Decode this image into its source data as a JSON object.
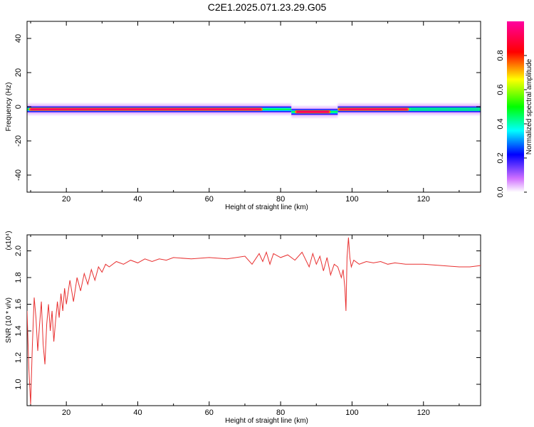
{
  "title": "C2E1.2025.071.23.29.G05",
  "chart_data": [
    {
      "type": "heatmap",
      "title": "C2E1.2025.071.23.29.G05",
      "xlabel": "Height of straight line (km)",
      "ylabel": "Frequency (Hz)",
      "xlim": [
        9,
        136
      ],
      "ylim": [
        -50,
        50
      ],
      "xticks": [
        20,
        40,
        60,
        80,
        100,
        120
      ],
      "yticks": [
        -40,
        -20,
        0,
        20,
        40
      ],
      "xtick_labels": [
        "20",
        "40",
        "60",
        "80",
        "100",
        "120"
      ],
      "ytick_labels": [
        "-40",
        "-20",
        "0",
        "20",
        "40"
      ],
      "colorbar": {
        "label": "Normalized spectral amplitude",
        "range": [
          0,
          1
        ],
        "ticks": [
          0.0,
          0.2,
          0.4,
          0.6,
          0.8
        ],
        "tick_labels": [
          "0.0",
          "0.2",
          "0.4",
          "0.6",
          "0.8"
        ],
        "colors": [
          "#ffffff",
          "#d070ff",
          "#0000ff",
          "#00ffff",
          "#00ff00",
          "#ffff00",
          "#ff0000",
          "#ff00a0"
        ]
      },
      "band": [
        {
          "x_start": 9,
          "x_end": 83,
          "center_freq": -1.5
        },
        {
          "x_start": 83,
          "x_end": 96,
          "center_freq": -3
        },
        {
          "x_start": 96,
          "x_end": 136,
          "center_freq": -1.5
        }
      ],
      "peak_segments": [
        {
          "x_start": 9.5,
          "x_end": 75,
          "amplitude": 0.95
        },
        {
          "x_start": 84,
          "x_end": 94,
          "amplitude": 0.95
        },
        {
          "x_start": 96,
          "x_end": 116,
          "amplitude": 0.9
        },
        {
          "x_start": 116,
          "x_end": 136,
          "amplitude": 0.5
        }
      ]
    },
    {
      "type": "line",
      "xlabel": "Height of straight line (km)",
      "ylabel": "SNR (10 * v/v)",
      "yscale_label": "(x10⁴)",
      "xlim": [
        9,
        136
      ],
      "ylim": [
        0.84,
        2.12
      ],
      "xticks": [
        20,
        40,
        60,
        80,
        100,
        120
      ],
      "yticks": [
        1.0,
        1.2,
        1.4,
        1.6,
        1.8,
        2.0
      ],
      "xtick_labels": [
        "20",
        "40",
        "60",
        "80",
        "100",
        "120"
      ],
      "ytick_labels": [
        "1.0",
        "1.2",
        "1.4",
        "1.6",
        "1.8",
        "2.0"
      ],
      "color": "#e83030",
      "x": [
        9.0,
        9.5,
        10.0,
        10.5,
        11.0,
        11.5,
        12.0,
        12.5,
        13.0,
        13.5,
        14.0,
        14.5,
        15.0,
        15.5,
        16.0,
        16.5,
        17.0,
        17.5,
        18.0,
        18.5,
        19.0,
        19.5,
        20.0,
        21.0,
        22.0,
        23.0,
        24.0,
        25.0,
        26.0,
        27.0,
        28.0,
        29.0,
        30.0,
        31.0,
        32.0,
        34.0,
        36.0,
        38.0,
        40.0,
        42.0,
        44.0,
        46.0,
        48.0,
        50.0,
        55.0,
        60.0,
        65.0,
        70.0,
        72.0,
        74.0,
        75.0,
        76.0,
        77.0,
        78.0,
        80.0,
        82.0,
        84.0,
        86.0,
        88.0,
        89.0,
        90.0,
        91.0,
        92.0,
        93.0,
        94.0,
        95.0,
        96.0,
        97.0,
        97.5,
        98.0,
        98.3,
        98.6,
        99.0,
        99.4,
        99.8,
        100.5,
        102.0,
        104.0,
        106.0,
        108.0,
        110.0,
        112.0,
        115.0,
        120.0,
        125.0,
        130.0,
        133.0,
        136.0
      ],
      "y": [
        1.55,
        1.12,
        0.85,
        1.3,
        1.65,
        1.5,
        1.25,
        1.45,
        1.62,
        1.3,
        1.15,
        1.45,
        1.6,
        1.4,
        1.55,
        1.32,
        1.48,
        1.62,
        1.5,
        1.68,
        1.55,
        1.72,
        1.6,
        1.78,
        1.62,
        1.8,
        1.7,
        1.83,
        1.75,
        1.86,
        1.78,
        1.88,
        1.84,
        1.9,
        1.88,
        1.92,
        1.9,
        1.93,
        1.91,
        1.94,
        1.92,
        1.94,
        1.93,
        1.95,
        1.94,
        1.95,
        1.94,
        1.96,
        1.9,
        1.98,
        1.92,
        1.99,
        1.9,
        1.98,
        1.95,
        1.97,
        1.93,
        1.99,
        1.88,
        1.98,
        1.9,
        1.96,
        1.85,
        1.95,
        1.82,
        1.9,
        1.88,
        1.8,
        1.86,
        1.72,
        1.55,
        1.95,
        2.1,
        1.95,
        1.88,
        1.93,
        1.9,
        1.92,
        1.91,
        1.92,
        1.9,
        1.91,
        1.9,
        1.9,
        1.89,
        1.88,
        1.88,
        1.89
      ]
    }
  ]
}
